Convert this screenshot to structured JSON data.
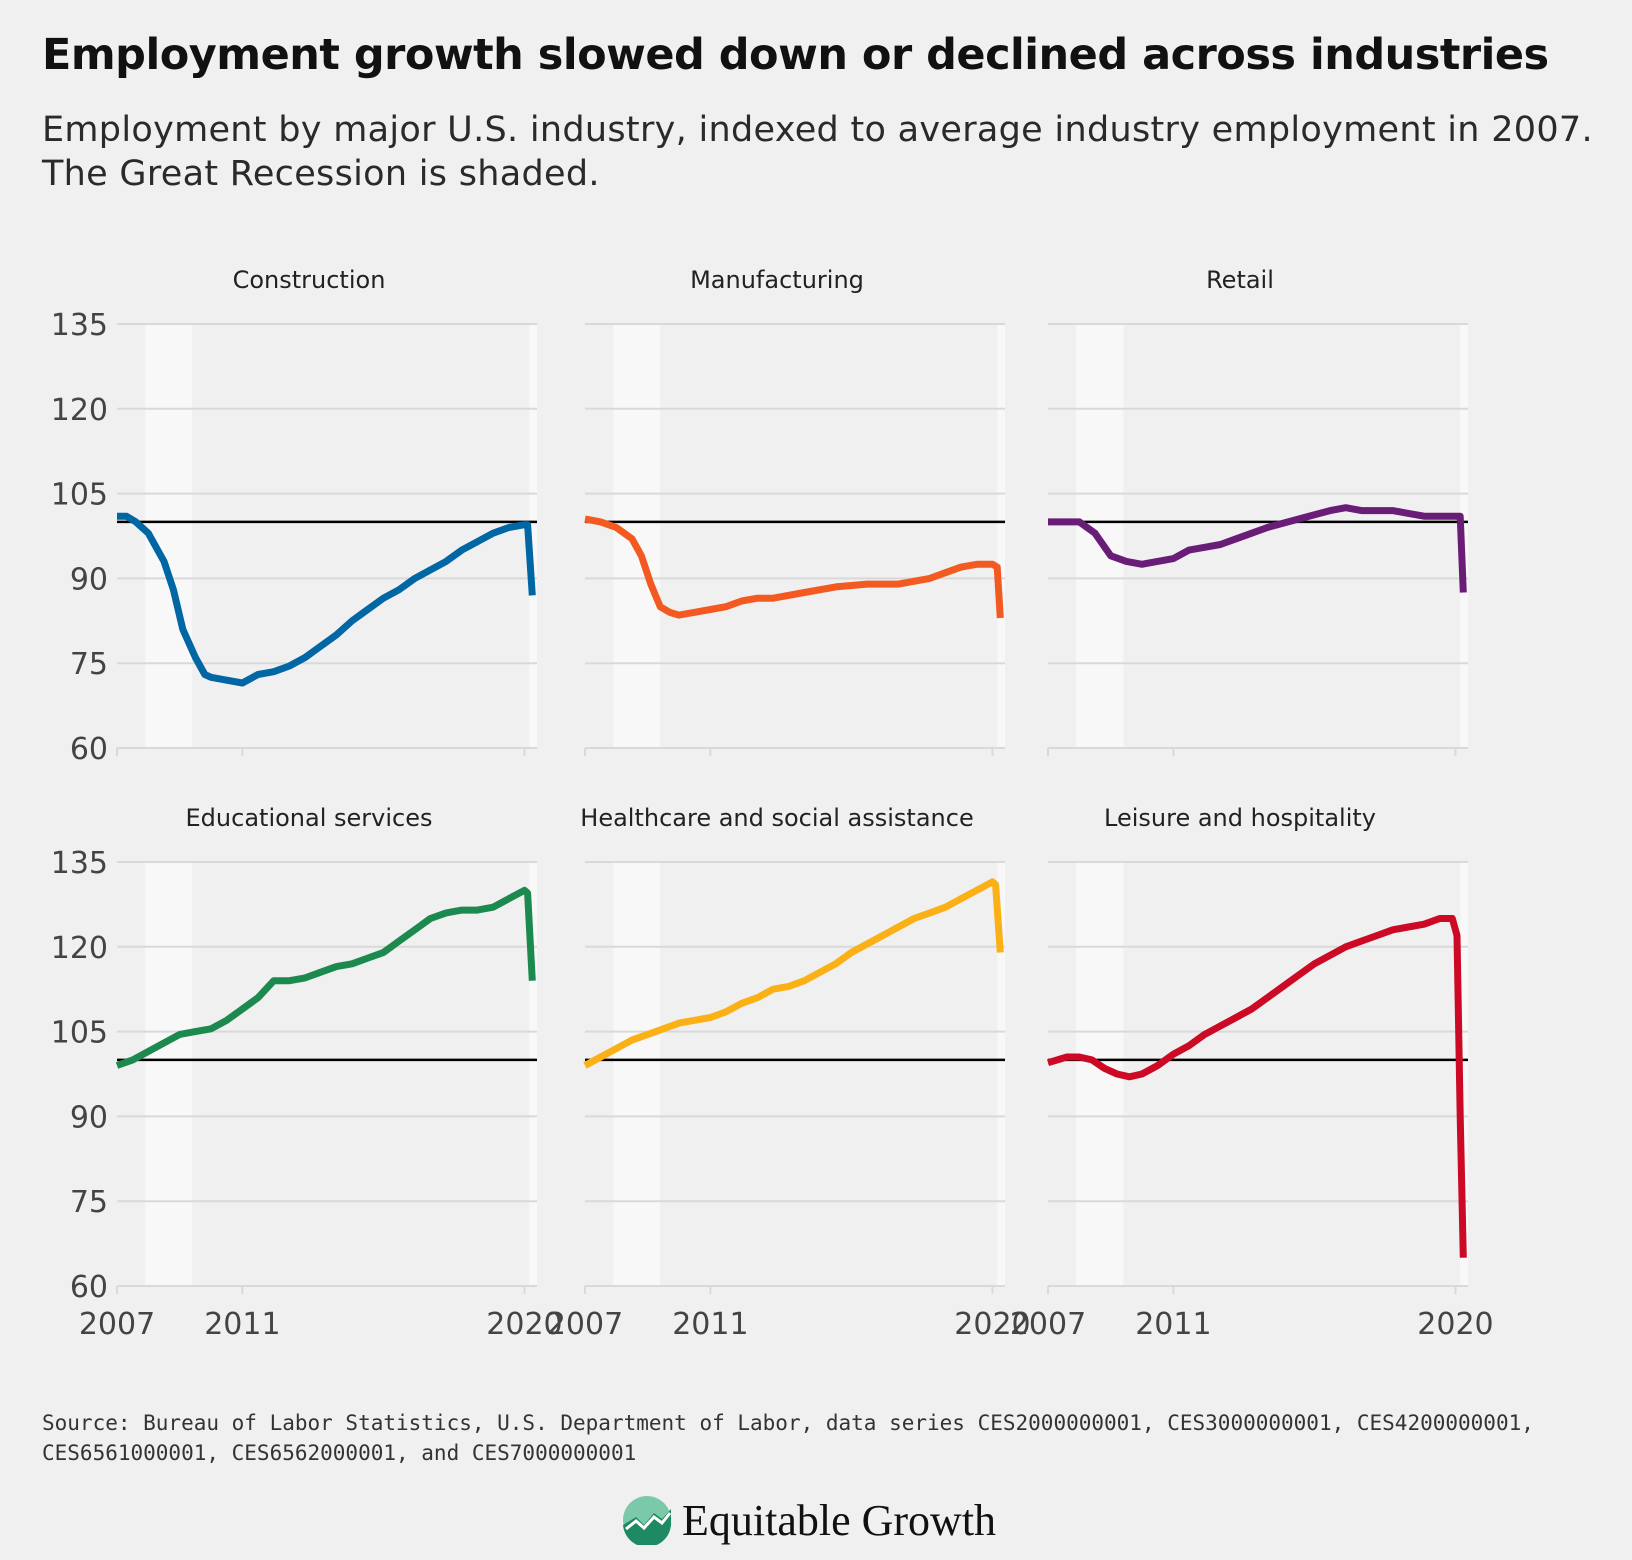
{
  "title": "Employment growth slowed down or declined across industries",
  "subtitle": "Employment by major U.S. industry, indexed to average industry employment in 2007. The Great Recession is shaded.",
  "source": "Source: Bureau of Labor Statistics, U.S. Department of Labor, data series CES2000000001, CES3000000001, CES4200000001, CES6561000001, CES6562000001, and CES7000000001",
  "brand": "Equitable Growth",
  "colors": {
    "background": "#f0f0f0",
    "recession_shade": "#f8f8f8",
    "grid": "#d9d9d9",
    "baseline": "#000000"
  },
  "chart_data": [
    {
      "type": "line",
      "title": "Construction",
      "color": "#0066a4",
      "ylim": [
        60,
        135
      ],
      "yticks": [
        60,
        75,
        90,
        105,
        120,
        135
      ],
      "xlim": [
        2007,
        2020.4
      ],
      "xticks": [
        2007,
        2011,
        2020
      ],
      "baseline": 100,
      "recession": [
        2007.9,
        2009.4
      ],
      "x": [
        2007,
        2007.3,
        2007.6,
        2008,
        2008.5,
        2008.8,
        2009.1,
        2009.5,
        2009.8,
        2010,
        2010.5,
        2011,
        2011.5,
        2012,
        2012.5,
        2013,
        2013.5,
        2014,
        2014.5,
        2015,
        2015.5,
        2016,
        2016.5,
        2017,
        2017.5,
        2018,
        2018.5,
        2019,
        2019.5,
        2020,
        2020.1,
        2020.25
      ],
      "y": [
        101,
        101,
        100,
        98,
        93,
        88,
        81,
        76,
        73,
        72.5,
        72,
        71.5,
        73,
        73.5,
        74.5,
        76,
        78,
        80,
        82.5,
        84.5,
        86.5,
        88,
        90,
        91.5,
        93,
        95,
        96.5,
        98,
        99,
        99.5,
        99.5,
        87
      ]
    },
    {
      "type": "line",
      "title": "Manufacturing",
      "color": "#f35a21",
      "ylim": [
        60,
        135
      ],
      "yticks": [
        60,
        75,
        90,
        105,
        120,
        135
      ],
      "xlim": [
        2007,
        2020.4
      ],
      "xticks": [
        2007,
        2011,
        2020
      ],
      "baseline": 100,
      "recession": [
        2007.9,
        2009.4
      ],
      "x": [
        2007,
        2007.5,
        2008,
        2008.5,
        2008.8,
        2009.1,
        2009.4,
        2009.7,
        2010,
        2010.5,
        2011,
        2011.5,
        2012,
        2012.5,
        2013,
        2014,
        2015,
        2016,
        2017,
        2018,
        2018.5,
        2019,
        2019.5,
        2020,
        2020.15,
        2020.25
      ],
      "y": [
        100.5,
        100,
        99,
        97,
        94,
        89,
        85,
        84,
        83.5,
        84,
        84.5,
        85,
        86,
        86.5,
        86.5,
        87.5,
        88.5,
        89,
        89,
        90,
        91,
        92,
        92.5,
        92.5,
        92,
        83
      ]
    },
    {
      "type": "line",
      "title": "Retail",
      "color": "#6a1d77",
      "ylim": [
        60,
        135
      ],
      "yticks": [
        60,
        75,
        90,
        105,
        120,
        135
      ],
      "xlim": [
        2007,
        2020.4
      ],
      "xticks": [
        2007,
        2011,
        2020
      ],
      "baseline": 100,
      "recession": [
        2007.9,
        2009.4
      ],
      "x": [
        2007,
        2007.5,
        2008,
        2008.5,
        2009,
        2009.5,
        2010,
        2011,
        2011.5,
        2012,
        2012.5,
        2013,
        2013.5,
        2014,
        2015,
        2016,
        2016.5,
        2017,
        2017.5,
        2018,
        2018.5,
        2019,
        2019.5,
        2020,
        2020.15,
        2020.25
      ],
      "y": [
        100,
        100,
        100,
        98,
        94,
        93,
        92.5,
        93.5,
        95,
        95.5,
        96,
        97,
        98,
        99,
        100.5,
        102,
        102.5,
        102,
        102,
        102,
        101.5,
        101,
        101,
        101,
        101,
        87.5
      ]
    },
    {
      "type": "line",
      "title": "Educational services",
      "color": "#1c8a4e",
      "ylim": [
        60,
        135
      ],
      "yticks": [
        60,
        75,
        90,
        105,
        120,
        135
      ],
      "xlim": [
        2007,
        2020.4
      ],
      "xticks": [
        2007,
        2011,
        2020
      ],
      "baseline": 100,
      "recession": [
        2007.9,
        2009.4
      ],
      "x": [
        2007,
        2007.5,
        2008,
        2008.5,
        2009,
        2009.5,
        2010,
        2010.5,
        2011,
        2011.5,
        2012,
        2012.5,
        2013,
        2013.5,
        2014,
        2014.5,
        2015,
        2015.5,
        2016,
        2016.5,
        2017,
        2017.5,
        2018,
        2018.5,
        2019,
        2019.5,
        2020,
        2020.1,
        2020.25
      ],
      "y": [
        99,
        100,
        101.5,
        103,
        104.5,
        105,
        105.5,
        107,
        109,
        111,
        114,
        114,
        114.5,
        115.5,
        116.5,
        117,
        118,
        119,
        121,
        123,
        125,
        126,
        126.5,
        126.5,
        127,
        128.5,
        130,
        129.5,
        114
      ]
    },
    {
      "type": "line",
      "title": "Healthcare and social assistance",
      "color": "#fbb116",
      "ylim": [
        60,
        135
      ],
      "yticks": [
        60,
        75,
        90,
        105,
        120,
        135
      ],
      "xlim": [
        2007,
        2020.4
      ],
      "xticks": [
        2007,
        2011,
        2020
      ],
      "baseline": 100,
      "recession": [
        2007.9,
        2009.4
      ],
      "x": [
        2007,
        2007.5,
        2008,
        2008.5,
        2009,
        2009.5,
        2010,
        2010.5,
        2011,
        2011.5,
        2012,
        2012.5,
        2013,
        2013.5,
        2014,
        2014.5,
        2015,
        2015.5,
        2016,
        2016.5,
        2017,
        2017.5,
        2018,
        2018.5,
        2019,
        2019.5,
        2020,
        2020.1,
        2020.25
      ],
      "y": [
        99,
        100.5,
        102,
        103.5,
        104.5,
        105.5,
        106.5,
        107,
        107.5,
        108.5,
        110,
        111,
        112.5,
        113,
        114,
        115.5,
        117,
        119,
        120.5,
        122,
        123.5,
        125,
        126,
        127,
        128.5,
        130,
        131.5,
        131,
        119
      ]
    },
    {
      "type": "line",
      "title": "Leisure and hospitality",
      "color": "#cc0a25",
      "ylim": [
        60,
        135
      ],
      "yticks": [
        60,
        75,
        90,
        105,
        120,
        135
      ],
      "xlim": [
        2007,
        2020.4
      ],
      "xticks": [
        2007,
        2011,
        2020
      ],
      "baseline": 100,
      "recession": [
        2007.9,
        2009.4
      ],
      "x": [
        2007,
        2007.3,
        2007.6,
        2008,
        2008.4,
        2008.8,
        2009.2,
        2009.6,
        2010,
        2010.5,
        2011,
        2011.5,
        2012,
        2012.5,
        2013,
        2013.5,
        2014,
        2014.5,
        2015,
        2015.5,
        2016,
        2016.5,
        2017,
        2017.5,
        2018,
        2018.5,
        2019,
        2019.5,
        2019.9,
        2020.05,
        2020.15,
        2020.25
      ],
      "y": [
        99.5,
        100,
        100.5,
        100.5,
        100,
        98.5,
        97.5,
        97,
        97.5,
        99,
        101,
        102.5,
        104.5,
        106,
        107.5,
        109,
        111,
        113,
        115,
        117,
        118.5,
        120,
        121,
        122,
        123,
        123.5,
        124,
        125,
        125,
        122,
        90,
        65
      ]
    }
  ]
}
